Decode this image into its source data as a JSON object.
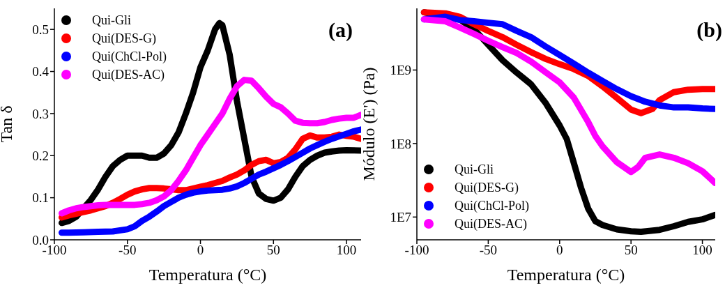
{
  "chart_data": [
    {
      "type": "line",
      "xlabel": "Temperatura (°C)",
      "ylabel": "Tan δ",
      "annotations": [
        "(a)"
      ],
      "xlim": [
        -100,
        110
      ],
      "xticks": [
        -100,
        -50,
        0,
        50,
        100
      ],
      "ylim": [
        0,
        0.55
      ],
      "yticks": [
        {
          "value": 0,
          "label": "0.0"
        },
        0.1,
        0.2,
        0.3,
        0.4,
        0.5
      ],
      "legend": "top left",
      "grid": false,
      "marker": "none",
      "line_style": "solid",
      "series": [
        {
          "name": "Qui-Gli",
          "color": "#000000",
          "x": [
            -95,
            -90,
            -85,
            -80,
            -75,
            -70,
            -65,
            -60,
            -55,
            -50,
            -45,
            -40,
            -35,
            -30,
            -25,
            -20,
            -15,
            -10,
            -5,
            0,
            5,
            10,
            13,
            15,
            20,
            25,
            30,
            35,
            40,
            45,
            50,
            55,
            60,
            65,
            70,
            75,
            80,
            85,
            90,
            95,
            100,
            110
          ],
          "values": [
            0.04,
            0.045,
            0.055,
            0.075,
            0.095,
            0.12,
            0.15,
            0.175,
            0.19,
            0.2,
            0.2,
            0.2,
            0.195,
            0.195,
            0.205,
            0.225,
            0.255,
            0.3,
            0.35,
            0.41,
            0.45,
            0.5,
            0.515,
            0.51,
            0.44,
            0.33,
            0.24,
            0.15,
            0.11,
            0.097,
            0.093,
            0.1,
            0.12,
            0.15,
            0.175,
            0.19,
            0.2,
            0.207,
            0.21,
            0.212,
            0.213,
            0.212
          ]
        },
        {
          "name": "Qui(DES-G)",
          "color": "#ff0000",
          "x": [
            -95,
            -90,
            -85,
            -80,
            -75,
            -70,
            -65,
            -60,
            -55,
            -50,
            -45,
            -40,
            -35,
            -30,
            -25,
            -20,
            -15,
            -10,
            -5,
            0,
            5,
            10,
            15,
            20,
            25,
            30,
            35,
            40,
            45,
            50,
            55,
            60,
            65,
            70,
            75,
            80,
            85,
            90,
            95,
            100,
            105,
            110
          ],
          "values": [
            0.053,
            0.058,
            0.062,
            0.066,
            0.07,
            0.075,
            0.08,
            0.088,
            0.097,
            0.107,
            0.115,
            0.12,
            0.123,
            0.123,
            0.122,
            0.12,
            0.118,
            0.118,
            0.122,
            0.126,
            0.13,
            0.135,
            0.14,
            0.148,
            0.155,
            0.165,
            0.178,
            0.187,
            0.19,
            0.182,
            0.185,
            0.195,
            0.215,
            0.24,
            0.248,
            0.243,
            0.243,
            0.245,
            0.25,
            0.247,
            0.245,
            0.24
          ]
        },
        {
          "name": "Qui(ChCl-Pol)",
          "color": "#0000ff",
          "x": [
            -95,
            -90,
            -80,
            -70,
            -60,
            -50,
            -45,
            -40,
            -35,
            -30,
            -25,
            -20,
            -15,
            -10,
            -5,
            0,
            5,
            10,
            15,
            20,
            25,
            30,
            35,
            40,
            45,
            50,
            55,
            60,
            65,
            70,
            75,
            80,
            85,
            90,
            95,
            100,
            105,
            110
          ],
          "values": [
            0.017,
            0.017,
            0.018,
            0.019,
            0.02,
            0.025,
            0.032,
            0.045,
            0.055,
            0.067,
            0.08,
            0.09,
            0.1,
            0.107,
            0.112,
            0.115,
            0.117,
            0.118,
            0.119,
            0.122,
            0.127,
            0.135,
            0.145,
            0.155,
            0.162,
            0.17,
            0.178,
            0.187,
            0.197,
            0.207,
            0.217,
            0.225,
            0.233,
            0.24,
            0.246,
            0.252,
            0.258,
            0.262
          ]
        },
        {
          "name": "Qui(DES-AC)",
          "color": "#ff00ff",
          "x": [
            -95,
            -90,
            -85,
            -80,
            -75,
            -70,
            -65,
            -60,
            -55,
            -50,
            -45,
            -40,
            -35,
            -30,
            -25,
            -20,
            -15,
            -10,
            -5,
            0,
            5,
            10,
            15,
            20,
            25,
            30,
            35,
            40,
            45,
            50,
            55,
            60,
            65,
            70,
            75,
            80,
            85,
            90,
            95,
            100,
            105,
            110
          ],
          "values": [
            0.063,
            0.07,
            0.075,
            0.078,
            0.08,
            0.082,
            0.083,
            0.083,
            0.083,
            0.083,
            0.083,
            0.085,
            0.088,
            0.094,
            0.103,
            0.118,
            0.14,
            0.165,
            0.195,
            0.225,
            0.25,
            0.275,
            0.3,
            0.335,
            0.365,
            0.38,
            0.378,
            0.36,
            0.34,
            0.323,
            0.315,
            0.3,
            0.283,
            0.278,
            0.277,
            0.277,
            0.28,
            0.285,
            0.288,
            0.29,
            0.29,
            0.297
          ]
        }
      ]
    },
    {
      "type": "line",
      "xlabel": "Temperatura (°C)",
      "ylabel": "Módulo (E') (Pa)",
      "annotations": [
        "(b)"
      ],
      "log": "y",
      "xlim": [
        -100,
        109
      ],
      "xticks": [
        -100,
        -50,
        0,
        50,
        100
      ],
      "ylim": [
        4900000,
        6900000000
      ],
      "yticks": [
        {
          "value": 10000000,
          "label": "1E7"
        },
        {
          "value": 100000000,
          "label": "1E8"
        },
        {
          "value": 1000000000,
          "label": "1E9"
        }
      ],
      "legend": "bottom left",
      "grid": false,
      "marker": "none",
      "line_style": "solid",
      "series": [
        {
          "name": "Qui-Gli",
          "color": "#000000",
          "x": [
            -95,
            -80,
            -70,
            -60,
            -50,
            -40,
            -30,
            -20,
            -10,
            0,
            5,
            10,
            15,
            20,
            25,
            30,
            40,
            50,
            57,
            70,
            80,
            90,
            100,
            109
          ],
          "values": [
            6100000000.0,
            null,
            4900000000.0,
            3600000000.0,
            2200000000.0,
            1360000000.0,
            920000000.0,
            640000000.0,
            360000000.0,
            176000000.0,
            115000000.0,
            54000000.0,
            25000000.0,
            13000000.0,
            8800000.0,
            7800000.0,
            6800000.0,
            6400000.0,
            6300000.0,
            6700000.0,
            7500000.0,
            8600000.0,
            9300000.0,
            10700000.0
          ]
        },
        {
          "name": "Qui(DES-G)",
          "color": "#ff0000",
          "x": [
            -95,
            -80,
            -70,
            -60,
            -50,
            -40,
            -30,
            -20,
            -10,
            0,
            10,
            20,
            30,
            40,
            50,
            57,
            65,
            70,
            80,
            90,
            100,
            109
          ],
          "values": [
            6100000000.0,
            5900000000.0,
            5300000000.0,
            4200000000.0,
            3400000000.0,
            2800000000.0,
            2200000000.0,
            1750000000.0,
            1420000000.0,
            1200000000.0,
            1030000000.0,
            830000000.0,
            600000000.0,
            420000000.0,
            290000000.0,
            260000000.0,
            295000000.0,
            390000000.0,
            500000000.0,
            540000000.0,
            550000000.0,
            550000000.0
          ]
        },
        {
          "name": "Qui(ChCl-Pol)",
          "color": "#0000ff",
          "x": [
            -95,
            -80,
            -70,
            -60,
            -50,
            -40,
            -30,
            -20,
            -10,
            0,
            10,
            20,
            30,
            40,
            50,
            60,
            70,
            80,
            90,
            100,
            109
          ],
          "values": [
            4900000000.0,
            5300000000.0,
            4800000000.0,
            4600000000.0,
            4400000000.0,
            4200000000.0,
            3400000000.0,
            2800000000.0,
            2100000000.0,
            1600000000.0,
            1220000000.0,
            920000000.0,
            710000000.0,
            550000000.0,
            440000000.0,
            370000000.0,
            330000000.0,
            310000000.0,
            310000000.0,
            300000000.0,
            295000000.0
          ]
        },
        {
          "name": "Qui(DES-AC)",
          "color": "#ff00ff",
          "x": [
            -95,
            -80,
            -70,
            -60,
            -50,
            -40,
            -30,
            -20,
            -10,
            0,
            10,
            20,
            25,
            30,
            40,
            50,
            55,
            60,
            70,
            80,
            90,
            100,
            109
          ],
          "values": [
            4900000000.0,
            4600000000.0,
            3800000000.0,
            3100000000.0,
            2500000000.0,
            2050000000.0,
            1700000000.0,
            1300000000.0,
            940000000.0,
            680000000.0,
            420000000.0,
            196000000.0,
            127000000.0,
            92000000.0,
            56000000.0,
            41000000.0,
            48000000.0,
            64000000.0,
            71000000.0,
            64000000.0,
            54000000.0,
            42000000.0,
            29000000.0
          ]
        }
      ]
    }
  ]
}
